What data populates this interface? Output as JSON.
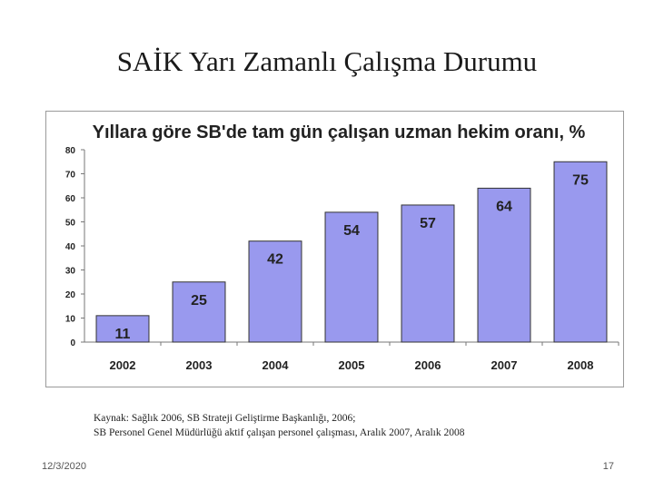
{
  "slide": {
    "title": "SAİK Yarı Zamanlı Çalışma Durumu",
    "source_line1": "Kaynak: Sağlık 2006, SB Strateji Geliştirme Başkanlığı, 2006;",
    "source_line2": "SB Personel  Genel Müdürlüğü aktif çalışan personel çalışması, Aralık 2007, Aralık 2008",
    "date": "12/3/2020",
    "page_number": "17"
  },
  "chart_data": {
    "type": "bar",
    "title": "Yıllara göre SB'de tam gün çalışan uzman hekim oranı, %",
    "categories": [
      "2002",
      "2003",
      "2004",
      "2005",
      "2006",
      "2007",
      "2008"
    ],
    "values": [
      11,
      25,
      42,
      54,
      57,
      64,
      75
    ],
    "ylim": [
      0,
      80
    ],
    "yticks": [
      0,
      10,
      20,
      30,
      40,
      50,
      60,
      70,
      80
    ],
    "grid": false,
    "bar_color": "#9999ee",
    "bar_edge_color": "#333333"
  }
}
